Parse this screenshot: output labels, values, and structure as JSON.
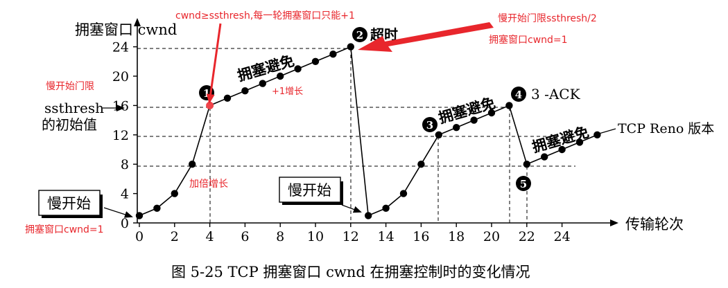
{
  "figure": {
    "caption": "图 5-25 TCP 拥塞窗口 cwnd 在拥塞控制时的变化情况",
    "y_axis_label": "拥塞窗口 cwnd",
    "x_axis_label": "传输轮次",
    "tcp_reno_label": "TCP Reno 版本"
  },
  "chart_data": {
    "type": "line",
    "xlabel": "传输轮次",
    "ylabel": "拥塞窗口 cwnd",
    "x_ticks": [
      0,
      2,
      4,
      6,
      8,
      10,
      12,
      14,
      16,
      18,
      20,
      22,
      24
    ],
    "y_ticks": [
      0,
      4,
      8,
      12,
      16,
      20,
      24
    ],
    "xlim": [
      0,
      26
    ],
    "ylim": [
      0,
      26
    ],
    "series": [
      {
        "values": [
          [
            0,
            1
          ],
          [
            1,
            2
          ],
          [
            2,
            4
          ],
          [
            3,
            8
          ],
          [
            4,
            16
          ],
          [
            5,
            17
          ],
          [
            6,
            18
          ],
          [
            7,
            19
          ],
          [
            8,
            20
          ],
          [
            9,
            21
          ],
          [
            10,
            22
          ],
          [
            11,
            23
          ],
          [
            12,
            24
          ],
          [
            13,
            1
          ],
          [
            14,
            2
          ],
          [
            15,
            4
          ],
          [
            16,
            8
          ],
          [
            17,
            12
          ],
          [
            18,
            13
          ],
          [
            19,
            14
          ],
          [
            20,
            15
          ],
          [
            21,
            16
          ],
          [
            22,
            8
          ],
          [
            23,
            9
          ],
          [
            24,
            10
          ],
          [
            25,
            11
          ],
          [
            26,
            12
          ]
        ]
      }
    ],
    "ssthresh_start": 16,
    "ssthresh_after_timeout": 12,
    "ssthresh_after_3ack": 8
  },
  "annotations": {
    "slow_start_1": "慢开始",
    "slow_start_2": "慢开始",
    "congestion_avoid_1": "拥塞避免",
    "congestion_avoid_2": "拥塞避免",
    "congestion_avoid_3": "拥塞避免",
    "timeout_label": "超时",
    "three_ack_label": "3 -ACK",
    "ssthresh_line1": "ssthresh",
    "ssthresh_line2": "的初始值",
    "markers": [
      "1",
      "2",
      "3",
      "4",
      "5"
    ]
  },
  "red_notes": {
    "top_note": "cwnd≥ssthresh,每一轮拥塞窗口只能+1",
    "right_note_1": "慢开始门限ssthresh/2",
    "right_note_2": "拥塞窗口cwnd=1",
    "left_note": "慢开始门限",
    "plus_one": "+1增长",
    "doubling": "加倍增长",
    "bottom_left_note": "拥塞窗口cwnd=1"
  },
  "colors": {
    "ink": "#000000",
    "note_red": "#e8262c",
    "highlight_point": "#f0444a"
  }
}
